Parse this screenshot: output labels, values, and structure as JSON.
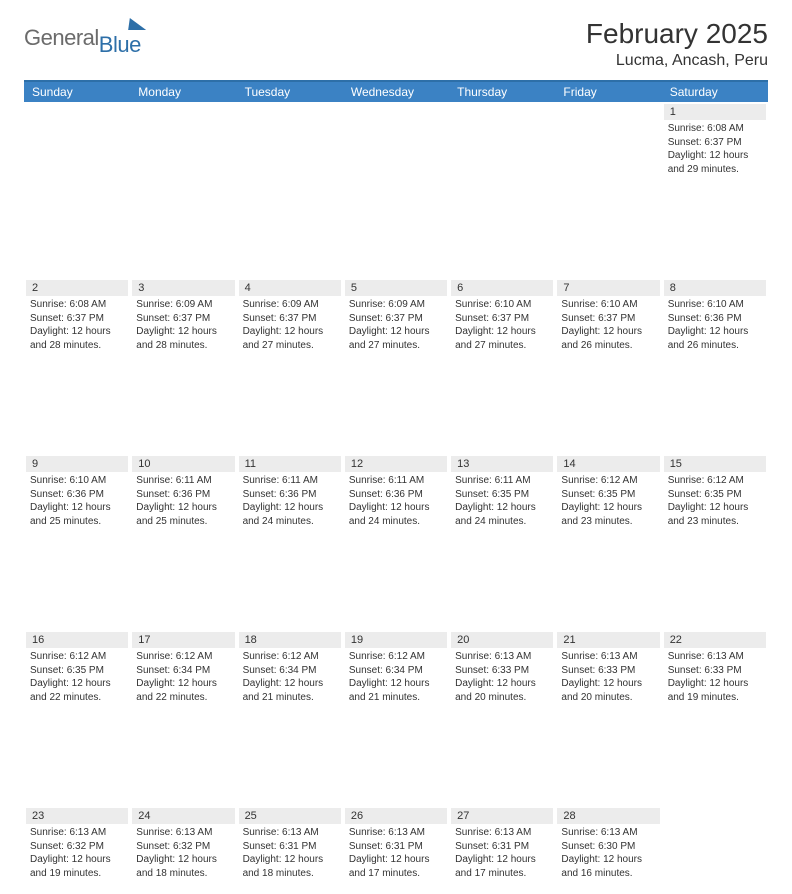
{
  "logo": {
    "general": "General",
    "blue": "Blue"
  },
  "header": {
    "title": "February 2025",
    "location": "Lucma, Ancash, Peru"
  },
  "weekdays": [
    "Sunday",
    "Monday",
    "Tuesday",
    "Wednesday",
    "Thursday",
    "Friday",
    "Saturday"
  ],
  "colors": {
    "header_blue": "#3b82c4",
    "divider_blue": "#2d6fa8",
    "cell_gray": "#ececec",
    "background": "#ffffff"
  },
  "calendar": {
    "first_weekday_index": 6,
    "days": [
      {
        "n": 1,
        "sunrise": "6:08 AM",
        "sunset": "6:37 PM",
        "daylight": "12 hours and 29 minutes."
      },
      {
        "n": 2,
        "sunrise": "6:08 AM",
        "sunset": "6:37 PM",
        "daylight": "12 hours and 28 minutes."
      },
      {
        "n": 3,
        "sunrise": "6:09 AM",
        "sunset": "6:37 PM",
        "daylight": "12 hours and 28 minutes."
      },
      {
        "n": 4,
        "sunrise": "6:09 AM",
        "sunset": "6:37 PM",
        "daylight": "12 hours and 27 minutes."
      },
      {
        "n": 5,
        "sunrise": "6:09 AM",
        "sunset": "6:37 PM",
        "daylight": "12 hours and 27 minutes."
      },
      {
        "n": 6,
        "sunrise": "6:10 AM",
        "sunset": "6:37 PM",
        "daylight": "12 hours and 27 minutes."
      },
      {
        "n": 7,
        "sunrise": "6:10 AM",
        "sunset": "6:37 PM",
        "daylight": "12 hours and 26 minutes."
      },
      {
        "n": 8,
        "sunrise": "6:10 AM",
        "sunset": "6:36 PM",
        "daylight": "12 hours and 26 minutes."
      },
      {
        "n": 9,
        "sunrise": "6:10 AM",
        "sunset": "6:36 PM",
        "daylight": "12 hours and 25 minutes."
      },
      {
        "n": 10,
        "sunrise": "6:11 AM",
        "sunset": "6:36 PM",
        "daylight": "12 hours and 25 minutes."
      },
      {
        "n": 11,
        "sunrise": "6:11 AM",
        "sunset": "6:36 PM",
        "daylight": "12 hours and 24 minutes."
      },
      {
        "n": 12,
        "sunrise": "6:11 AM",
        "sunset": "6:36 PM",
        "daylight": "12 hours and 24 minutes."
      },
      {
        "n": 13,
        "sunrise": "6:11 AM",
        "sunset": "6:35 PM",
        "daylight": "12 hours and 24 minutes."
      },
      {
        "n": 14,
        "sunrise": "6:12 AM",
        "sunset": "6:35 PM",
        "daylight": "12 hours and 23 minutes."
      },
      {
        "n": 15,
        "sunrise": "6:12 AM",
        "sunset": "6:35 PM",
        "daylight": "12 hours and 23 minutes."
      },
      {
        "n": 16,
        "sunrise": "6:12 AM",
        "sunset": "6:35 PM",
        "daylight": "12 hours and 22 minutes."
      },
      {
        "n": 17,
        "sunrise": "6:12 AM",
        "sunset": "6:34 PM",
        "daylight": "12 hours and 22 minutes."
      },
      {
        "n": 18,
        "sunrise": "6:12 AM",
        "sunset": "6:34 PM",
        "daylight": "12 hours and 21 minutes."
      },
      {
        "n": 19,
        "sunrise": "6:12 AM",
        "sunset": "6:34 PM",
        "daylight": "12 hours and 21 minutes."
      },
      {
        "n": 20,
        "sunrise": "6:13 AM",
        "sunset": "6:33 PM",
        "daylight": "12 hours and 20 minutes."
      },
      {
        "n": 21,
        "sunrise": "6:13 AM",
        "sunset": "6:33 PM",
        "daylight": "12 hours and 20 minutes."
      },
      {
        "n": 22,
        "sunrise": "6:13 AM",
        "sunset": "6:33 PM",
        "daylight": "12 hours and 19 minutes."
      },
      {
        "n": 23,
        "sunrise": "6:13 AM",
        "sunset": "6:32 PM",
        "daylight": "12 hours and 19 minutes."
      },
      {
        "n": 24,
        "sunrise": "6:13 AM",
        "sunset": "6:32 PM",
        "daylight": "12 hours and 18 minutes."
      },
      {
        "n": 25,
        "sunrise": "6:13 AM",
        "sunset": "6:31 PM",
        "daylight": "12 hours and 18 minutes."
      },
      {
        "n": 26,
        "sunrise": "6:13 AM",
        "sunset": "6:31 PM",
        "daylight": "12 hours and 17 minutes."
      },
      {
        "n": 27,
        "sunrise": "6:13 AM",
        "sunset": "6:31 PM",
        "daylight": "12 hours and 17 minutes."
      },
      {
        "n": 28,
        "sunrise": "6:13 AM",
        "sunset": "6:30 PM",
        "daylight": "12 hours and 16 minutes."
      }
    ]
  },
  "labels": {
    "sunrise": "Sunrise:",
    "sunset": "Sunset:",
    "daylight": "Daylight:"
  }
}
